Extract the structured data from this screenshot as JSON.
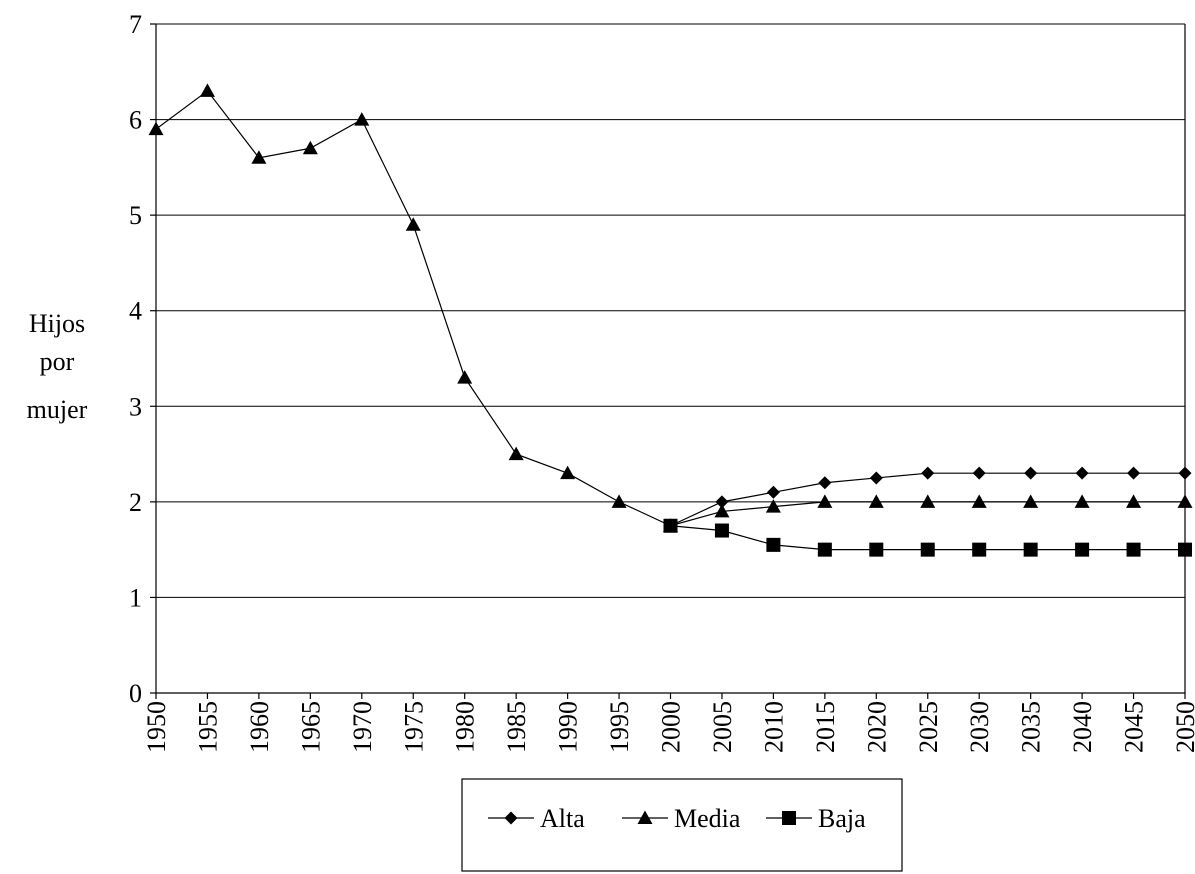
{
  "chart_data": {
    "type": "line",
    "title": "",
    "xlabel": "",
    "ylabel_lines": [
      "Hijos",
      "por",
      "mujer"
    ],
    "x": [
      1950,
      1955,
      1960,
      1965,
      1970,
      1975,
      1980,
      1985,
      1990,
      1995,
      2000,
      2005,
      2010,
      2015,
      2020,
      2025,
      2030,
      2035,
      2040,
      2045,
      2050
    ],
    "x_tick_labels": [
      "1950",
      "1955",
      "1960",
      "1965",
      "1970",
      "1975",
      "1980",
      "1985",
      "1990",
      "1995",
      "2000",
      "2005",
      "2010",
      "2015",
      "2020",
      "2025",
      "2030",
      "2035",
      "2040",
      "2045",
      "2050"
    ],
    "ylim": [
      0,
      7
    ],
    "y_ticks": [
      0,
      1,
      2,
      3,
      4,
      5,
      6,
      7
    ],
    "y_tick_labels": [
      "0",
      "1",
      "2",
      "3",
      "4",
      "5",
      "6",
      "7"
    ],
    "grid": true,
    "legend_position": "bottom",
    "series": [
      {
        "name": "Alta",
        "marker": "diamond",
        "values": [
          null,
          null,
          null,
          null,
          null,
          null,
          null,
          null,
          null,
          null,
          1.75,
          2.0,
          2.1,
          2.2,
          2.25,
          2.3,
          2.3,
          2.3,
          2.3,
          2.3,
          2.3
        ]
      },
      {
        "name": "Media",
        "marker": "triangle",
        "values": [
          5.9,
          6.3,
          5.6,
          5.7,
          6.0,
          4.9,
          3.3,
          2.5,
          2.3,
          2.0,
          1.75,
          1.9,
          1.95,
          2.0,
          2.0,
          2.0,
          2.0,
          2.0,
          2.0,
          2.0,
          2.0
        ]
      },
      {
        "name": "Baja",
        "marker": "square",
        "values": [
          null,
          null,
          null,
          null,
          null,
          null,
          null,
          null,
          null,
          null,
          1.75,
          1.7,
          1.55,
          1.5,
          1.5,
          1.5,
          1.5,
          1.5,
          1.5,
          1.5,
          1.5
        ]
      }
    ]
  }
}
